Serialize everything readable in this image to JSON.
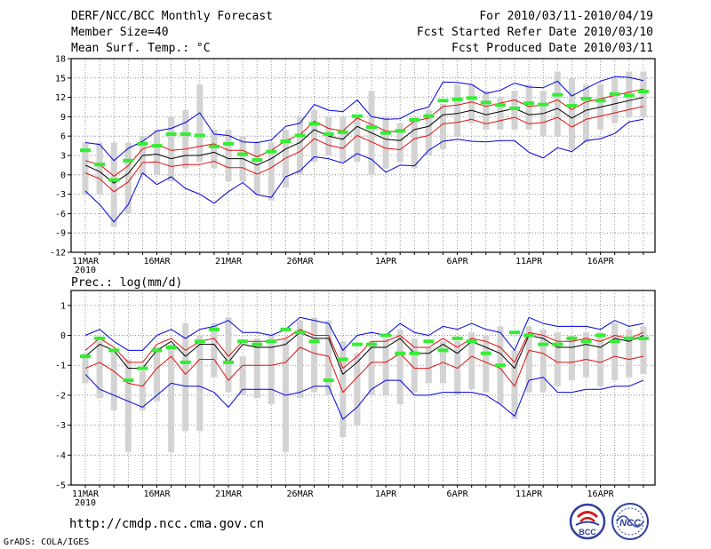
{
  "header": {
    "title": "DERF/NCC/BCC Monthly Forecast",
    "member_size": "Member Size=40",
    "variable": "Mean Surf. Temp.: °C",
    "forecast_period": "For 2010/03/11-2010/04/19",
    "started_refer": "Fcst Started Refer Date 2010/03/10",
    "produced": "Fcst Produced Date 2010/03/11"
  },
  "footer": {
    "url": "http://cmdp.ncc.cma.gov.cn",
    "grads": "GrADS: COLA/IGES",
    "logo_bcc": "BCC",
    "logo_ncc": "NCC"
  },
  "colors": {
    "box": "#d3d3d3",
    "clim": "#33ee33",
    "mean": "#000000",
    "inner": "#e01010",
    "outer": "#0000dd",
    "grid": "#808080"
  },
  "chart_data": [
    {
      "type": "line",
      "id": "temperature",
      "title": "Mean Surf. Temp.: °C",
      "ylim": [
        -12,
        18
      ],
      "yticks": [
        -12,
        -9,
        -6,
        -3,
        0,
        3,
        6,
        9,
        12,
        15,
        18
      ],
      "x_tick_labels": [
        {
          "day": 1,
          "label": "11MAR"
        },
        {
          "day": 6,
          "label": "16MAR"
        },
        {
          "day": 11,
          "label": "21MAR"
        },
        {
          "day": 16,
          "label": "26MAR"
        },
        {
          "day": 22,
          "label": "1APR"
        },
        {
          "day": 27,
          "label": "6APR"
        },
        {
          "day": 32,
          "label": "11APR"
        },
        {
          "day": 37,
          "label": "16APR"
        }
      ],
      "year_label": "2010",
      "series": [
        {
          "name": "box_top",
          "values": [
            5,
            5,
            5,
            5,
            6,
            7,
            9,
            10,
            14,
            7,
            7,
            6,
            5,
            5,
            7,
            9,
            10,
            9,
            9,
            9,
            13,
            9,
            8,
            9,
            10,
            11,
            14,
            14,
            13,
            12,
            13,
            14,
            13,
            16,
            15,
            14,
            14,
            15,
            16,
            16
          ]
        },
        {
          "name": "box_bottom",
          "values": [
            -3,
            -3,
            -8,
            -6,
            0,
            0,
            -1,
            1,
            2,
            1,
            -1,
            -1,
            -3,
            -4,
            -2,
            0,
            2,
            3,
            2,
            2,
            0,
            1,
            2,
            1,
            3,
            4,
            6,
            8,
            7,
            7,
            7,
            7,
            6,
            6,
            4,
            5,
            7,
            8,
            9,
            9
          ]
        },
        {
          "name": "climatology",
          "values": [
            3.8,
            1.6,
            -0.8,
            2.2,
            4.8,
            4.5,
            6.3,
            6.3,
            6.1,
            4.4,
            4.8,
            3.2,
            2.3,
            3.6,
            5.2,
            6.1,
            7.9,
            6.3,
            6.6,
            9.1,
            7.4,
            6.5,
            6.8,
            8.5,
            9.1,
            11.5,
            11.7,
            11.9,
            11.2,
            10.8,
            10.3,
            11.1,
            10.9,
            12.4,
            10.7,
            11.8,
            11.5,
            12.5,
            12.3,
            12.9
          ]
        },
        {
          "name": "ensemble_mean",
          "values": [
            1.5,
            0.5,
            -1.3,
            0.2,
            3,
            3.2,
            2.5,
            3,
            3,
            3.5,
            2.5,
            2.5,
            1.5,
            2.5,
            4,
            5,
            7,
            6,
            5.5,
            7.5,
            6.5,
            5.5,
            5.3,
            7,
            7.5,
            9.3,
            9.5,
            10,
            9.3,
            9.8,
            10.3,
            9.3,
            9.5,
            10.3,
            8.8,
            10,
            10.5,
            11,
            11.5,
            12
          ]
        },
        {
          "name": "inner_upper",
          "values": [
            2.2,
            1.6,
            -0.2,
            1.4,
            4,
            4.7,
            3.8,
            4,
            4.4,
            4.8,
            3.8,
            3.8,
            2.8,
            3.8,
            5.3,
            6.2,
            8.3,
            7.2,
            6.8,
            8.8,
            7.8,
            6.8,
            6.6,
            8.3,
            8.8,
            10.6,
            10.8,
            11.3,
            10.6,
            11.1,
            11.6,
            10.6,
            10.8,
            11.6,
            10.1,
            11.3,
            11.8,
            12.3,
            12.8,
            13.3
          ]
        },
        {
          "name": "inner_lower",
          "values": [
            0.3,
            -0.6,
            -2.6,
            -1.1,
            1.9,
            2,
            1.3,
            1.6,
            1.6,
            2.1,
            1.1,
            1.1,
            0.1,
            1.1,
            2.6,
            3.6,
            5.6,
            4.6,
            4.1,
            6.1,
            5.1,
            4.1,
            3.9,
            5.6,
            6.1,
            7.9,
            8.1,
            8.6,
            7.9,
            8.4,
            8.9,
            7.9,
            8.1,
            8.9,
            7.4,
            8.6,
            9.1,
            9.6,
            10.1,
            10.6
          ]
        },
        {
          "name": "outer_upper",
          "values": [
            5,
            4.7,
            2.2,
            4.1,
            5.2,
            6.8,
            7.2,
            8.1,
            9.6,
            6.3,
            6.1,
            5.1,
            5,
            5.4,
            7.5,
            8,
            10.9,
            10,
            9.8,
            11.6,
            9,
            8.6,
            8.7,
            9.9,
            10.5,
            14.4,
            14.3,
            14,
            12.6,
            13.1,
            14.2,
            13.6,
            13.5,
            14.5,
            12.2,
            13.4,
            14.5,
            15.2,
            15.1,
            14.6
          ]
        },
        {
          "name": "outer_lower",
          "values": [
            -2.5,
            -4.6,
            -7.3,
            -4.6,
            0.3,
            -1.5,
            -0.3,
            -2.1,
            -3,
            -4.4,
            -2.6,
            -1.2,
            -3.1,
            -3.5,
            -0.3,
            0.6,
            2.8,
            2.5,
            1.8,
            3.3,
            2.4,
            0.4,
            1.5,
            1.4,
            3.8,
            5.2,
            5.5,
            5.2,
            5.1,
            5.3,
            5.3,
            3.5,
            2.6,
            4.2,
            3.6,
            5.3,
            5.6,
            6.4,
            8.2,
            8.6
          ]
        }
      ]
    },
    {
      "type": "line",
      "id": "precipitation",
      "title": "Prec.: log(mm/d)",
      "ylim": [
        -5,
        1.5
      ],
      "yticks": [
        -5,
        -4,
        -3,
        -2,
        -1,
        0,
        1
      ],
      "x_tick_labels": [
        {
          "day": 1,
          "label": "11MAR"
        },
        {
          "day": 6,
          "label": "16MAR"
        },
        {
          "day": 11,
          "label": "21MAR"
        },
        {
          "day": 16,
          "label": "26MAR"
        },
        {
          "day": 22,
          "label": "1APR"
        },
        {
          "day": 27,
          "label": "6APR"
        },
        {
          "day": 32,
          "label": "11APR"
        },
        {
          "day": 37,
          "label": "16APR"
        }
      ],
      "year_label": "2010",
      "series": [
        {
          "name": "box_top",
          "values": [
            -0.6,
            -0.2,
            -0.5,
            -0.8,
            -1.2,
            -0.4,
            -0.3,
            0.4,
            0,
            0.4,
            0.6,
            -0.7,
            -0.1,
            0,
            -0.1,
            0.5,
            0.6,
            0.5,
            -0.2,
            -0.6,
            -0.2,
            -0.1,
            0.2,
            -0.1,
            -0.4,
            -0.2,
            -0.2,
            0.1,
            0,
            0.3,
            -0.5,
            0.3,
            0.2,
            0.1,
            0,
            0.1,
            0.1,
            0.4,
            0.2,
            0.3
          ]
        },
        {
          "name": "box_bottom",
          "values": [
            -1.6,
            -2.1,
            -2.5,
            -3.9,
            -2.5,
            -2.2,
            -3.9,
            -3.2,
            -3.2,
            -1.4,
            -1.9,
            -2,
            -2.1,
            -2.3,
            -3.9,
            -2.1,
            -1.9,
            -2,
            -3.4,
            -3,
            -2,
            -2,
            -2.3,
            -1.9,
            -1.6,
            -1.6,
            -2,
            -1.8,
            -1.9,
            -2.3,
            -2.8,
            -1.9,
            -1.9,
            -1.7,
            -1.5,
            -1.4,
            -1.7,
            -1.5,
            -1.4,
            -1.3
          ]
        },
        {
          "name": "climatology",
          "values": [
            -0.7,
            -0.1,
            -0.5,
            -1.5,
            -1.1,
            -0.5,
            -0.4,
            -0.9,
            -0.2,
            0.2,
            -0.9,
            -0.2,
            -0.3,
            -0.2,
            0.2,
            0.1,
            -0.2,
            -1.5,
            -0.8,
            -0.3,
            -0.3,
            0,
            -0.6,
            -0.6,
            -0.2,
            -0.5,
            -0.1,
            -0.2,
            -0.6,
            -1,
            0.1,
            0,
            -0.3,
            -0.3,
            -0.1,
            -0.2,
            0,
            -0.2,
            -0.1,
            -0.1
          ]
        },
        {
          "name": "ensemble_mean",
          "values": [
            -0.7,
            -0.3,
            -0.5,
            -1.1,
            -1.1,
            -0.5,
            -0.2,
            -0.7,
            -0.3,
            -0.3,
            -0.9,
            -0.3,
            -0.4,
            -0.4,
            -0.3,
            0.1,
            -0.1,
            -0.1,
            -1.3,
            -0.9,
            -0.4,
            -0.4,
            -0.1,
            -0.6,
            -0.6,
            -0.3,
            -0.6,
            -0.2,
            -0.4,
            -0.6,
            -1.1,
            0,
            -0.1,
            -0.4,
            -0.4,
            -0.3,
            -0.4,
            -0.1,
            -0.2,
            0
          ]
        },
        {
          "name": "inner_upper",
          "values": [
            -0.5,
            -0.1,
            -0.4,
            -0.9,
            -0.9,
            -0.3,
            -0.1,
            -0.5,
            -0.2,
            -0.1,
            -0.7,
            -0.2,
            -0.2,
            -0.2,
            -0.1,
            0.2,
            0,
            0,
            -1.1,
            -0.7,
            -0.2,
            -0.2,
            0,
            -0.4,
            -0.4,
            -0.1,
            -0.4,
            -0.1,
            -0.2,
            -0.4,
            -0.9,
            0.1,
            0,
            -0.2,
            -0.2,
            -0.1,
            -0.2,
            0,
            -0.1,
            0.1
          ]
        },
        {
          "name": "inner_lower",
          "values": [
            -1.1,
            -0.9,
            -1.2,
            -1.6,
            -1.7,
            -1.1,
            -0.7,
            -1.3,
            -0.8,
            -0.8,
            -1.5,
            -1,
            -1,
            -1,
            -0.9,
            -0.4,
            -0.6,
            -0.7,
            -1.9,
            -1.4,
            -0.9,
            -0.9,
            -0.6,
            -1.1,
            -1.1,
            -0.9,
            -1.1,
            -0.7,
            -0.9,
            -1.1,
            -1.7,
            -0.5,
            -0.6,
            -0.9,
            -0.9,
            -0.8,
            -0.9,
            -0.7,
            -0.8,
            -0.7
          ]
        },
        {
          "name": "outer_upper",
          "values": [
            0,
            0.2,
            -0.2,
            -0.5,
            -0.5,
            0,
            0.2,
            -0.1,
            0.2,
            0.3,
            0.5,
            0.1,
            0.1,
            0,
            0.2,
            0.6,
            0.5,
            0.4,
            -0.5,
            0,
            0.1,
            0,
            0.4,
            0.1,
            0,
            0.3,
            0.2,
            0.4,
            0.2,
            0.1,
            -0.5,
            0.6,
            0.4,
            0.3,
            0.3,
            0.3,
            0.2,
            0.5,
            0.3,
            0.4
          ]
        },
        {
          "name": "outer_lower",
          "values": [
            -1.3,
            -1.8,
            -2,
            -2.2,
            -2.4,
            -2,
            -1.6,
            -1.7,
            -1.7,
            -1.9,
            -2.4,
            -1.8,
            -1.8,
            -1.8,
            -2,
            -1.9,
            -1.7,
            -1.7,
            -2.8,
            -2.4,
            -1.8,
            -1.5,
            -1.5,
            -2,
            -2,
            -1.9,
            -1.9,
            -1.9,
            -2,
            -2.3,
            -2.7,
            -1.5,
            -1.4,
            -1.9,
            -1.9,
            -1.8,
            -1.8,
            -1.7,
            -1.7,
            -1.5
          ]
        }
      ]
    }
  ]
}
